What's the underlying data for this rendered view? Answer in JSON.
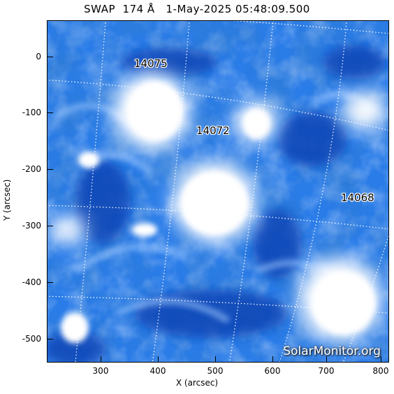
{
  "title": "SWAP  174 Å   1-May-2025 05:48:09.500",
  "axes": {
    "xlabel": "X (arcsec)",
    "ylabel": "Y (arcsec)",
    "x_ticks": [
      "300",
      "400",
      "500",
      "600",
      "700",
      "800"
    ],
    "y_ticks": [
      "0",
      "-100",
      "-200",
      "-300",
      "-400",
      "-500"
    ]
  },
  "regions": [
    {
      "label": "14075"
    },
    {
      "label": "14072"
    },
    {
      "label": "14068"
    }
  ],
  "watermark": "SolarMonitor.org",
  "colors": {
    "background_blue": "#1f73e6",
    "bright": "#ffffff",
    "dark": "#0a3aa8"
  }
}
